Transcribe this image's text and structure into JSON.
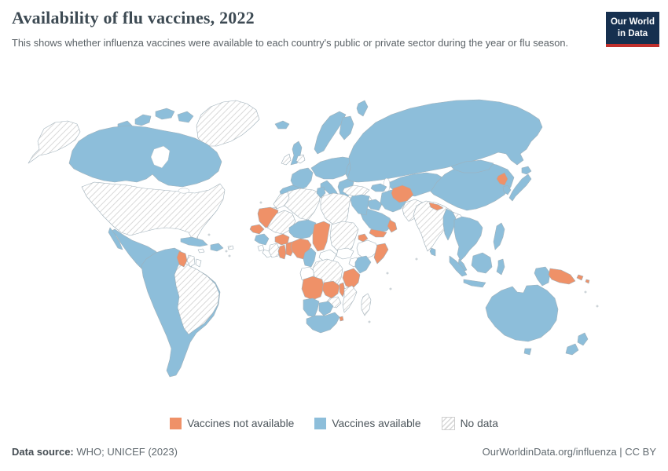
{
  "header": {
    "title": "Availability of flu vaccines, 2022",
    "subtitle": "This shows whether influenza vaccines were available to each country's public or private sector during the year or flu season.",
    "logo": {
      "line1": "Our World",
      "line2": "in Data"
    }
  },
  "legend": {
    "items": [
      {
        "label": "Vaccines not available",
        "status": "not-available"
      },
      {
        "label": "Vaccines available",
        "status": "available"
      },
      {
        "label": "No data",
        "status": "no-data"
      }
    ]
  },
  "footer": {
    "source_label": "Data source:",
    "source_text": " WHO; UNICEF (2023)",
    "link_text": "OurWorldinData.org/influenza | CC BY"
  },
  "chart_data": {
    "type": "choropleth-map",
    "title": "Availability of flu vaccines, 2022",
    "legend_position": "bottom-center",
    "categories": [
      "Vaccines not available",
      "Vaccines available",
      "No data"
    ],
    "category_colors": {
      "Vaccines not available": "#ef9168",
      "Vaccines available": "#8dbeda",
      "No data": "hatched"
    }
  },
  "map": {
    "colors": {
      "available": "#8dbeda",
      "not-available": "#ef9168",
      "hatch-line": "#d9d9d9",
      "none": "#ffffff",
      "border": "#9fb0ba"
    },
    "regions": {
      "canada": "available",
      "mexico": "available",
      "central-america": "available",
      "cuba": "available",
      "hispaniola": "available",
      "south-america-west": "available",
      "iceland": "available",
      "united-kingdom": "available",
      "norway-sweden": "available",
      "finland": "available",
      "novaya-zemlya": "available",
      "france": "available",
      "iberia": "available",
      "central-europe": "available",
      "eastern-europe": "available",
      "italy": "available",
      "balkans-greece": "available",
      "russia": "available",
      "kazakhstan-central-asia": "available",
      "caucasus": "available",
      "iraq": "available",
      "iran": "available",
      "saudi-arabia": "available",
      "egypt": "available",
      "tunisia": "available",
      "niger": "available",
      "guinea": "available",
      "cameroon": "available",
      "kenya": "available",
      "namibia": "available",
      "botswana": "available",
      "south-africa": "available",
      "sri-lanka": "available",
      "myanmar": "available",
      "thailand-indochina": "available",
      "malay-peninsula": "available",
      "china": "available",
      "mongolia": "available",
      "south-korea": "available",
      "japan": "available",
      "philippines": "available",
      "sumatra": "available",
      "java": "available",
      "borneo": "available",
      "sulawesi": "available",
      "west-papua": "available",
      "australia": "available",
      "tasmania": "available",
      "new-zealand": "available",
      "guyana": "not-available",
      "mauritania": "not-available",
      "senegal": "not-available",
      "burkina-faso": "not-available",
      "ghana": "not-available",
      "togo-benin": "not-available",
      "nigeria": "not-available",
      "chad": "not-available",
      "eritrea": "not-available",
      "somalia": "not-available",
      "tanzania": "not-available",
      "angola": "not-available",
      "zambia": "not-available",
      "malawi": "not-available",
      "eswatini": "not-available",
      "yemen": "not-available",
      "oman": "not-available",
      "afghanistan": "not-available",
      "nepal": "not-available",
      "north-korea": "not-available",
      "papua-new-guinea": "not-available",
      "new-britain": "not-available",
      "solomon-islands": "not-available",
      "greenland": "no-data",
      "alaska": "no-data",
      "united-states": "no-data",
      "puerto-rico": "no-data",
      "brazil": "no-data",
      "suriname": "no-data",
      "ireland": "no-data",
      "denmark": "no-data",
      "morocco": "no-data",
      "western-sahara": "no-data",
      "algeria": "no-data",
      "libya": "no-data",
      "mali": "no-data",
      "cote-divoire": "no-data",
      "sudan": "no-data",
      "dr-congo": "no-data",
      "mozambique": "no-data",
      "zimbabwe": "no-data",
      "madagascar": "no-data",
      "turkey": "no-data",
      "pakistan": "no-data",
      "india": "no-data",
      "india-northeast": "no-data",
      "jamaica": "none",
      "french-guiana": "none",
      "syria-levant": "none",
      "sierra-leone": "none",
      "liberia": "none",
      "ethiopia": "none",
      "south-sudan": "none",
      "central-african-republic": "none",
      "gabon-congo": "none",
      "uganda": "none",
      "bangladesh": "none"
    }
  }
}
